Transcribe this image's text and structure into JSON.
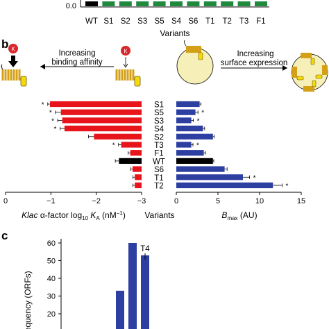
{
  "top_panel": {
    "y_tick": "0.0",
    "categories": [
      "WT",
      "S1",
      "S2",
      "S3",
      "S5",
      "S4",
      "S6",
      "T1",
      "T2",
      "T3",
      "F1"
    ],
    "xlabel": "Variants",
    "colors": [
      "#000000",
      "#1f8a3c",
      "#1f8a3c",
      "#1f8a3c",
      "#1f8a3c",
      "#1f8a3c",
      "#1f8a3c",
      "#1f8a3c",
      "#1f8a3c",
      "#1f8a3c",
      "#1f8a3c"
    ]
  },
  "panel_b": {
    "label": "b",
    "arrow_left": [
      "Increasing",
      "binding affinity"
    ],
    "arrow_right": [
      "Increasing",
      "surface expression"
    ],
    "k_label": "K",
    "center_label": "Variants"
  },
  "panel_c": {
    "label": "c",
    "annotation": "T4",
    "ylabel": "Frequency (ORFs)"
  },
  "chart_data": [
    {
      "type": "bar",
      "orientation": "horizontal",
      "categories": [
        "S1",
        "S5",
        "S3",
        "S4",
        "S2",
        "T3",
        "F1",
        "WT",
        "S6",
        "T1",
        "T2"
      ],
      "values": [
        -0.98,
        -1.22,
        -1.25,
        -1.3,
        -1.95,
        -2.55,
        -2.75,
        -2.5,
        -2.8,
        -2.85,
        -2.85
      ],
      "errors": [
        0.05,
        0.12,
        0.1,
        0.1,
        0.12,
        0.06,
        0.05,
        0.08,
        0.04,
        0.04,
        0.04
      ],
      "significant": [
        true,
        true,
        true,
        true,
        false,
        true,
        false,
        false,
        false,
        false,
        false
      ],
      "bar_colors": [
        "#e8141b",
        "#e8141b",
        "#e8141b",
        "#e8141b",
        "#e8141b",
        "#e8141b",
        "#e8141b",
        "#000000",
        "#e8141b",
        "#e8141b",
        "#e8141b"
      ],
      "xlabel_parts": [
        "Klac",
        " α-factor log",
        "10",
        " K",
        "A",
        " (nM",
        "−1",
        ")"
      ],
      "xlim": [
        0,
        -3
      ],
      "xticks": [
        "0",
        "−1",
        "−2",
        "−3"
      ],
      "marker": "*"
    },
    {
      "type": "bar",
      "orientation": "horizontal",
      "categories": [
        "S1",
        "S5",
        "S3",
        "S4",
        "S2",
        "T3",
        "F1",
        "WT",
        "S6",
        "T1",
        "T2"
      ],
      "values": [
        2.8,
        2.3,
        1.8,
        3.2,
        4.4,
        1.8,
        3.3,
        4.4,
        5.8,
        8.0,
        11.6
      ],
      "errors": [
        0.15,
        0.3,
        0.25,
        0.2,
        0.15,
        0.2,
        0.2,
        0.1,
        0.3,
        0.8,
        1.1
      ],
      "significant": [
        false,
        true,
        true,
        false,
        false,
        true,
        false,
        false,
        false,
        true,
        true
      ],
      "bar_colors": [
        "#2e3fa2",
        "#2e3fa2",
        "#2e3fa2",
        "#2e3fa2",
        "#2e3fa2",
        "#2e3fa2",
        "#2e3fa2",
        "#000000",
        "#2e3fa2",
        "#2e3fa2",
        "#2e3fa2"
      ],
      "xlabel_parts": [
        "B",
        "max",
        " (AU)"
      ],
      "xlim": [
        0,
        15
      ],
      "xticks": [
        "0",
        "5",
        "10",
        "15"
      ],
      "marker": "*"
    },
    {
      "type": "bar",
      "yticks": [
        "20",
        "30",
        "40",
        "50",
        "60"
      ],
      "ylim": [
        20,
        60
      ],
      "values": [
        33,
        60,
        53
      ],
      "color": "#2e3fa2"
    }
  ]
}
